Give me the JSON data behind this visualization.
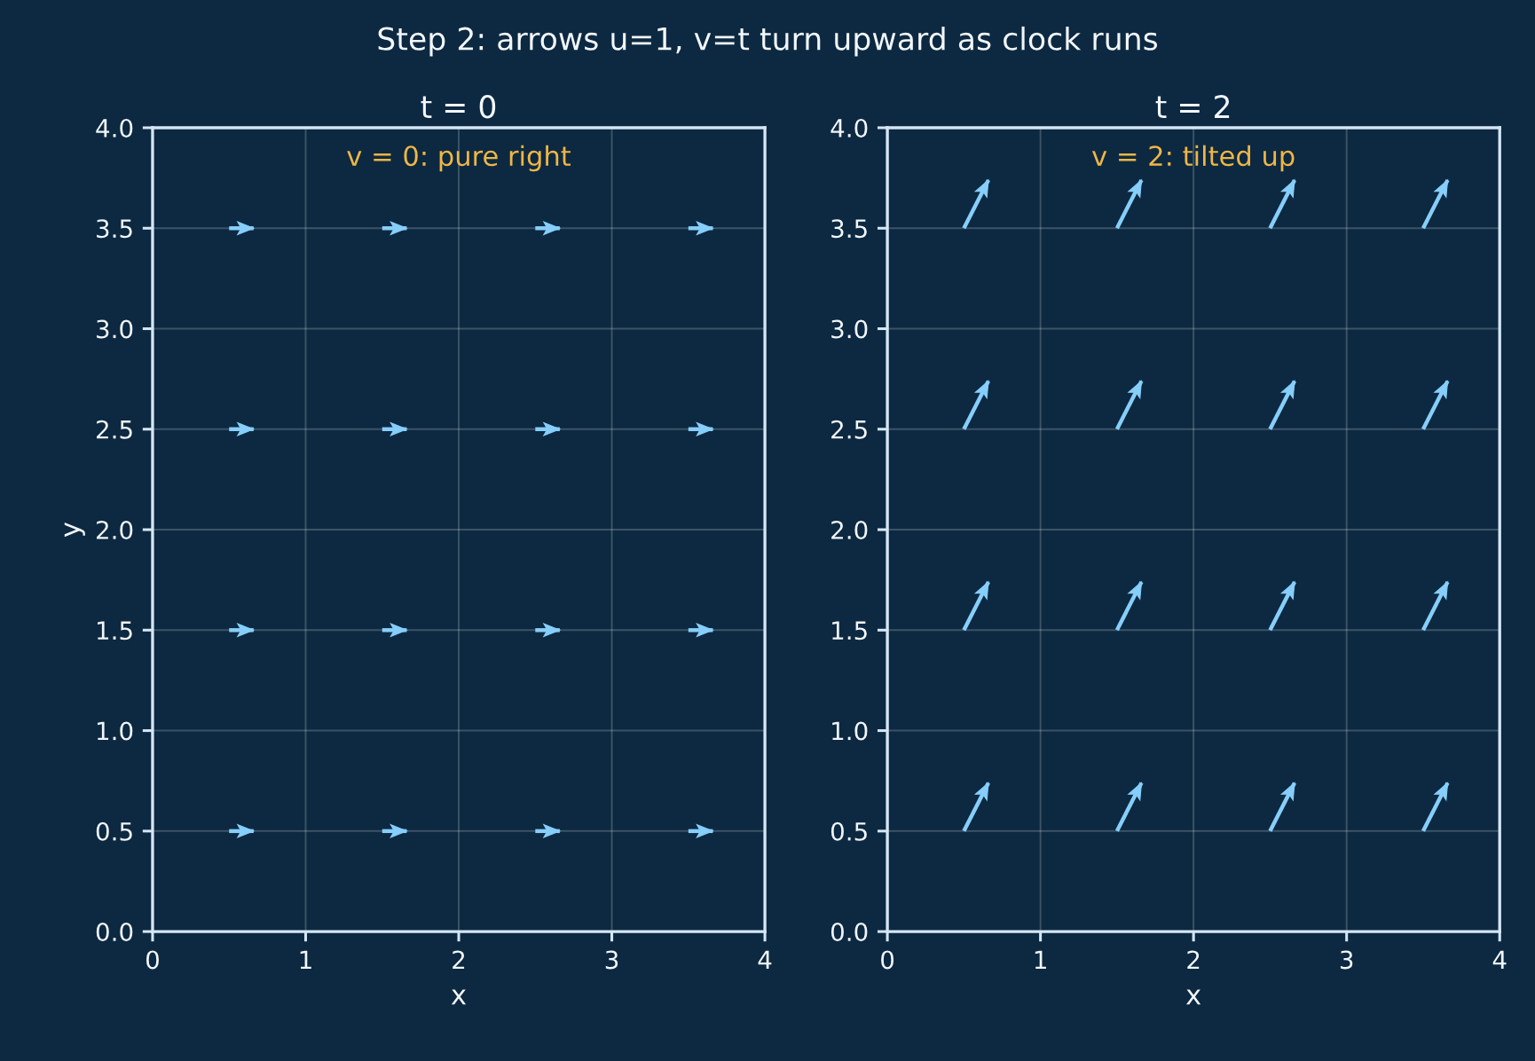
{
  "chart_data": [
    {
      "type": "line",
      "title": "Step 2: arrows u=1, v=t turn upward as clock runs",
      "subtitle": "t = 0",
      "xlabel": "x",
      "ylabel": "y",
      "grid": true,
      "xlim": [
        0,
        4
      ],
      "xticks": [
        0,
        1,
        2,
        3,
        4
      ],
      "ylim": [
        0,
        4
      ],
      "yticks": [
        {
          "value": 0,
          "label": "0.0"
        },
        {
          "value": 0.5,
          "label": "0.5"
        },
        {
          "value": 1,
          "label": "1.0"
        },
        {
          "value": 1.5,
          "label": "1.5"
        },
        {
          "value": 2,
          "label": "2.0"
        },
        {
          "value": 2.5,
          "label": "2.5"
        },
        {
          "value": 3,
          "label": "3.0"
        },
        {
          "value": 3.5,
          "label": "3.5"
        },
        {
          "value": 4,
          "label": "4.0"
        }
      ],
      "annotations": [
        "v = 0: pure right"
      ],
      "series": [
        {
          "color": "#87cefa",
          "x": [
            0.5,
            0.66
          ],
          "values": [
            0.5,
            0.5
          ]
        },
        {
          "color": "#87cefa",
          "x": [
            1.5,
            1.66
          ],
          "values": [
            0.5,
            0.5
          ]
        },
        {
          "color": "#87cefa",
          "x": [
            2.5,
            2.66
          ],
          "values": [
            0.5,
            0.5
          ]
        },
        {
          "color": "#87cefa",
          "x": [
            3.5,
            3.66
          ],
          "values": [
            0.5,
            0.5
          ]
        },
        {
          "color": "#87cefa",
          "x": [
            0.5,
            0.66
          ],
          "values": [
            1.5,
            1.5
          ]
        },
        {
          "color": "#87cefa",
          "x": [
            1.5,
            1.66
          ],
          "values": [
            1.5,
            1.5
          ]
        },
        {
          "color": "#87cefa",
          "x": [
            2.5,
            2.66
          ],
          "values": [
            1.5,
            1.5
          ]
        },
        {
          "color": "#87cefa",
          "x": [
            3.5,
            3.66
          ],
          "values": [
            1.5,
            1.5
          ]
        },
        {
          "color": "#87cefa",
          "x": [
            0.5,
            0.66
          ],
          "values": [
            2.5,
            2.5
          ]
        },
        {
          "color": "#87cefa",
          "x": [
            1.5,
            1.66
          ],
          "values": [
            2.5,
            2.5
          ]
        },
        {
          "color": "#87cefa",
          "x": [
            2.5,
            2.66
          ],
          "values": [
            2.5,
            2.5
          ]
        },
        {
          "color": "#87cefa",
          "x": [
            3.5,
            3.66
          ],
          "values": [
            2.5,
            2.5
          ]
        },
        {
          "color": "#87cefa",
          "x": [
            0.5,
            0.66
          ],
          "values": [
            3.5,
            3.5
          ]
        },
        {
          "color": "#87cefa",
          "x": [
            1.5,
            1.66
          ],
          "values": [
            3.5,
            3.5
          ]
        },
        {
          "color": "#87cefa",
          "x": [
            2.5,
            2.66
          ],
          "values": [
            3.5,
            3.5
          ]
        },
        {
          "color": "#87cefa",
          "x": [
            3.5,
            3.66
          ],
          "values": [
            3.5,
            3.5
          ]
        }
      ]
    },
    {
      "type": "line",
      "subtitle": "t = 2",
      "xlabel": "x",
      "grid": true,
      "xlim": [
        0,
        4
      ],
      "xticks": [
        0,
        1,
        2,
        3,
        4
      ],
      "ylim": [
        0,
        4
      ],
      "yticks": [
        {
          "value": 0,
          "label": "0.0"
        },
        {
          "value": 0.5,
          "label": "0.5"
        },
        {
          "value": 1,
          "label": "1.0"
        },
        {
          "value": 1.5,
          "label": "1.5"
        },
        {
          "value": 2,
          "label": "2.0"
        },
        {
          "value": 2.5,
          "label": "2.5"
        },
        {
          "value": 3,
          "label": "3.0"
        },
        {
          "value": 3.5,
          "label": "3.5"
        },
        {
          "value": 4,
          "label": "4.0"
        }
      ],
      "annotations": [
        "v = 2: tilted up"
      ],
      "series": [
        {
          "color": "#87cefa",
          "x": [
            0.5,
            0.66
          ],
          "values": [
            0.5,
            0.74
          ]
        },
        {
          "color": "#87cefa",
          "x": [
            1.5,
            1.66
          ],
          "values": [
            0.5,
            0.74
          ]
        },
        {
          "color": "#87cefa",
          "x": [
            2.5,
            2.66
          ],
          "values": [
            0.5,
            0.74
          ]
        },
        {
          "color": "#87cefa",
          "x": [
            3.5,
            3.66
          ],
          "values": [
            0.5,
            0.74
          ]
        },
        {
          "color": "#87cefa",
          "x": [
            0.5,
            0.66
          ],
          "values": [
            1.5,
            1.74
          ]
        },
        {
          "color": "#87cefa",
          "x": [
            1.5,
            1.66
          ],
          "values": [
            1.5,
            1.74
          ]
        },
        {
          "color": "#87cefa",
          "x": [
            2.5,
            2.66
          ],
          "values": [
            1.5,
            1.74
          ]
        },
        {
          "color": "#87cefa",
          "x": [
            3.5,
            3.66
          ],
          "values": [
            1.5,
            1.74
          ]
        },
        {
          "color": "#87cefa",
          "x": [
            0.5,
            0.66
          ],
          "values": [
            2.5,
            2.74
          ]
        },
        {
          "color": "#87cefa",
          "x": [
            1.5,
            1.66
          ],
          "values": [
            2.5,
            2.74
          ]
        },
        {
          "color": "#87cefa",
          "x": [
            2.5,
            2.66
          ],
          "values": [
            2.5,
            2.74
          ]
        },
        {
          "color": "#87cefa",
          "x": [
            3.5,
            3.66
          ],
          "values": [
            2.5,
            2.74
          ]
        },
        {
          "color": "#87cefa",
          "x": [
            0.5,
            0.66
          ],
          "values": [
            3.5,
            3.74
          ]
        },
        {
          "color": "#87cefa",
          "x": [
            1.5,
            1.66
          ],
          "values": [
            3.5,
            3.74
          ]
        },
        {
          "color": "#87cefa",
          "x": [
            2.5,
            2.66
          ],
          "values": [
            3.5,
            3.74
          ]
        },
        {
          "color": "#87cefa",
          "x": [
            3.5,
            3.66
          ],
          "values": [
            3.5,
            3.74
          ]
        }
      ]
    }
  ]
}
